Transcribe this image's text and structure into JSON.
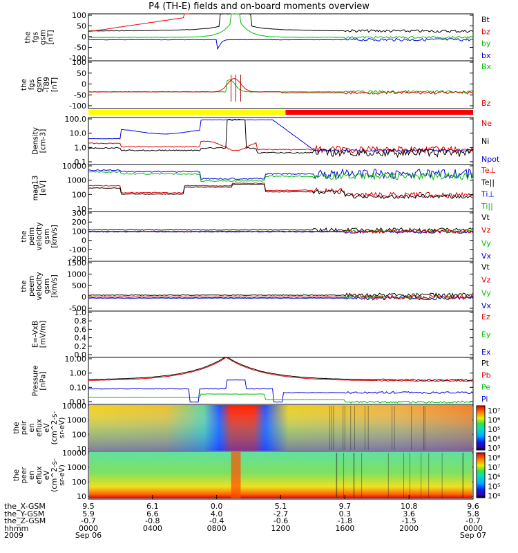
{
  "title": "P4 (TH-E) fields and on-board moments overview",
  "chart_data": {
    "type": "line",
    "title": "P4 (TH-E) fields and on-board moments overview",
    "x_tick_labels": [
      "0000\nSep 06",
      "0400",
      "0800",
      "1200",
      "1600",
      "2000",
      "0000\nSep 07"
    ],
    "x_ticks_hhmm": [
      "0000",
      "0400",
      "0800",
      "1200",
      "1600",
      "2000",
      "0000"
    ],
    "x_dates": [
      "Sep 06",
      "",
      "",
      "",
      "",
      "",
      "Sep 07"
    ],
    "xrange_hours": [
      0,
      24
    ],
    "panels": [
      {
        "id": "fgs",
        "ylabel": [
          "the",
          "fgs",
          "gsm",
          "[nT]"
        ],
        "yticks": [
          "100",
          "50",
          "0",
          "-50",
          "-100"
        ],
        "ylim": [
          -100,
          100
        ],
        "legend": [
          {
            "name": "Bt",
            "color": "#000000"
          },
          {
            "name": "bz",
            "color": "#dd0000"
          },
          {
            "name": "by",
            "color": "#00bb00"
          },
          {
            "name": "bx",
            "color": "#0000dd"
          }
        ]
      },
      {
        "id": "fgs-t89",
        "ylabel": [
          "the",
          "fgs",
          "gsm",
          "-T89",
          "[nT]"
        ],
        "yticks": [
          "100",
          "50",
          "0",
          "-50",
          "-100"
        ],
        "ylim": [
          -120,
          100
        ],
        "legend": [
          {
            "name": "Bx",
            "color": "#00bb00"
          },
          {
            "name": "Bz",
            "color": "#dd0000"
          }
        ]
      },
      {
        "id": "density",
        "ylabel": [
          "Density",
          "[cm-3]"
        ],
        "yticks": [
          "100.0",
          "10.0",
          "1.0",
          "0.1"
        ],
        "ylim": [
          0.1,
          100
        ],
        "legend": [
          {
            "name": "Ne",
            "color": "#dd0000"
          },
          {
            "name": "Ni",
            "color": "#000000"
          },
          {
            "name": "Npot",
            "color": "#0000dd"
          }
        ]
      },
      {
        "id": "temperature",
        "ylabel": [
          "mag13",
          "[eV]"
        ],
        "yticks": [
          "10000",
          "1000",
          "100",
          "10"
        ],
        "ylim": [
          5,
          10000
        ],
        "legend": [
          {
            "name": "Te⊥",
            "color": "#dd0000"
          },
          {
            "name": "Te||",
            "color": "#000000"
          },
          {
            "name": "Ti⊥",
            "color": "#0000dd"
          },
          {
            "name": "Ti||",
            "color": "#00bb00"
          }
        ]
      },
      {
        "id": "peim-velocity",
        "ylabel": [
          "the",
          "peim",
          "velocity",
          "gsm",
          "[km/s]"
        ],
        "yticks": [
          "300",
          "200",
          "100",
          "0",
          "-100",
          "-200"
        ],
        "ylim": [
          -200,
          300
        ],
        "legend": [
          {
            "name": "Vt",
            "color": "#000000"
          },
          {
            "name": "Vz",
            "color": "#dd0000"
          },
          {
            "name": "Vy",
            "color": "#00bb00"
          },
          {
            "name": "Vx",
            "color": "#0000dd"
          }
        ]
      },
      {
        "id": "peem-velocity",
        "ylabel": [
          "the",
          "peem",
          "velocity",
          "gsm",
          "[km/s]"
        ],
        "yticks": [
          "1500",
          "1000",
          "500",
          "0",
          "-500"
        ],
        "ylim": [
          -600,
          1500
        ],
        "legend": [
          {
            "name": "Vt",
            "color": "#000000"
          },
          {
            "name": "Vz",
            "color": "#dd0000"
          },
          {
            "name": "Vy",
            "color": "#00bb00"
          },
          {
            "name": "Vx",
            "color": "#0000dd"
          }
        ]
      },
      {
        "id": "efield",
        "ylabel": [
          "E=-VxB",
          "[mV/m]"
        ],
        "yticks": [
          "1.0",
          "0.8",
          "0.6",
          "0.4",
          "0.2",
          "0.0"
        ],
        "ylim": [
          0,
          1
        ],
        "legend": [
          {
            "name": "Ez",
            "color": "#dd0000"
          },
          {
            "name": "Ey",
            "color": "#00bb00"
          },
          {
            "name": "Ex",
            "color": "#0000dd"
          }
        ]
      },
      {
        "id": "pressure",
        "ylabel": [
          "Pressure",
          "[nPa]"
        ],
        "yticks": [
          "10.00",
          "1.00",
          "0.10",
          "0.01"
        ],
        "ylim": [
          0.005,
          30
        ],
        "legend": [
          {
            "name": "Pt",
            "color": "#000000"
          },
          {
            "name": "Pb",
            "color": "#dd0000"
          },
          {
            "name": "Pe",
            "color": "#00bb00"
          },
          {
            "name": "Pi",
            "color": "#0000dd"
          }
        ]
      },
      {
        "id": "peir-spectrogram",
        "ylabel": [
          "the",
          "peir",
          "en",
          "eflux",
          "eV",
          "(cm^2-s-",
          "sr-eV)"
        ],
        "yticks": [
          "10000",
          "1000",
          "100",
          "10"
        ],
        "colorbar_ticks": [
          "10⁷",
          "10⁶",
          "10⁵",
          "10⁴",
          "10³"
        ]
      },
      {
        "id": "peer-spectrogram",
        "ylabel": [
          "the",
          "peer",
          "en",
          "eflux",
          "eV",
          "(cm^2-s-",
          "sr-eV)"
        ],
        "yticks": [
          "10000",
          "1000",
          "100",
          "10"
        ],
        "colorbar_ticks": [
          "10⁸",
          "10⁷",
          "10⁶",
          "10⁵",
          "10⁴"
        ]
      }
    ]
  },
  "ephemeris": {
    "rows": [
      {
        "name": "the_X-GSM",
        "values": [
          "9.5",
          "6.1",
          "0.0",
          "5.1",
          "9.7",
          "10.8",
          "9.6"
        ]
      },
      {
        "name": "the_Y-GSM",
        "values": [
          "5.9",
          "6.6",
          "4.0",
          "-2.7",
          "0.3",
          "3.6",
          "5.8"
        ]
      },
      {
        "name": "the_Z-GSM",
        "values": [
          "-0.7",
          "-0.8",
          "-0.4",
          "-0.6",
          "-1.8",
          "-1.5",
          "-0.7"
        ]
      },
      {
        "name": "hhmm",
        "values": [
          "0000",
          "0400",
          "0800",
          "1200",
          "1600",
          "2000",
          "0000"
        ]
      },
      {
        "name": "2009",
        "values": [
          "Sep 06",
          "",
          "",
          "",
          "",
          "",
          "Sep 07"
        ]
      }
    ]
  }
}
